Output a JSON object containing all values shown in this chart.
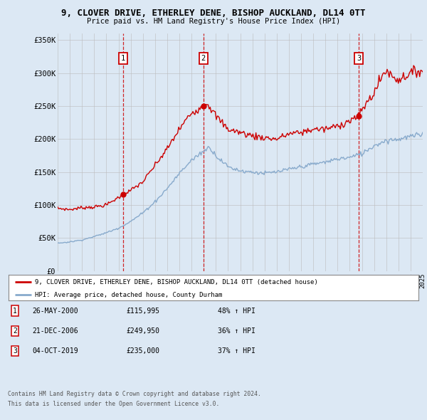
{
  "title": "9, CLOVER DRIVE, ETHERLEY DENE, BISHOP AUCKLAND, DL14 0TT",
  "subtitle": "Price paid vs. HM Land Registry's House Price Index (HPI)",
  "bg_color": "#dce8f4",
  "plot_bg_color": "#dce8f4",
  "legend_line1": "9, CLOVER DRIVE, ETHERLEY DENE, BISHOP AUCKLAND, DL14 0TT (detached house)",
  "legend_line2": "HPI: Average price, detached house, County Durham",
  "footer1": "Contains HM Land Registry data © Crown copyright and database right 2024.",
  "footer2": "This data is licensed under the Open Government Licence v3.0.",
  "sales": [
    {
      "num": 1,
      "date": "26-MAY-2000",
      "price": 115995,
      "pct": "48% ↑ HPI"
    },
    {
      "num": 2,
      "date": "21-DEC-2006",
      "price": 249950,
      "pct": "36% ↑ HPI"
    },
    {
      "num": 3,
      "date": "04-OCT-2019",
      "price": 235000,
      "pct": "37% ↑ HPI"
    }
  ],
  "sale_years": [
    2000.38,
    2006.97,
    2019.76
  ],
  "sale_prices": [
    115995,
    249950,
    235000
  ],
  "ylim": [
    0,
    360000
  ],
  "yticks": [
    0,
    50000,
    100000,
    150000,
    200000,
    250000,
    300000,
    350000
  ],
  "ytick_labels": [
    "£0",
    "£50K",
    "£100K",
    "£150K",
    "£200K",
    "£250K",
    "£300K",
    "£350K"
  ],
  "year_start": 1995,
  "year_end": 2025,
  "red_color": "#cc0000",
  "blue_color": "#88aacc",
  "grid_color": "#bbbbbb",
  "red_kp_years": [
    1995,
    1996,
    1997,
    1998,
    1999,
    2000.38,
    2001,
    2002,
    2003,
    2004,
    2005,
    2006,
    2006.97,
    2007.3,
    2008,
    2009,
    2010,
    2011,
    2012,
    2013,
    2014,
    2015,
    2016,
    2017,
    2018,
    2019,
    2019.76,
    2020,
    2021,
    2021.5,
    2022,
    2022.5,
    2023,
    2024,
    2025
  ],
  "red_kp_vals": [
    95000,
    93000,
    96000,
    97000,
    100000,
    115995,
    122000,
    135000,
    160000,
    185000,
    215000,
    240000,
    249950,
    255000,
    235000,
    215000,
    210000,
    205000,
    202000,
    200000,
    208000,
    210000,
    215000,
    215000,
    220000,
    228000,
    235000,
    245000,
    270000,
    290000,
    305000,
    295000,
    290000,
    300000,
    305000
  ],
  "blue_kp_years": [
    1995,
    1996,
    1997,
    1998,
    1999,
    2000,
    2001,
    2002,
    2003,
    2004,
    2005,
    2006,
    2007,
    2007.5,
    2008,
    2009,
    2010,
    2011,
    2012,
    2013,
    2014,
    2015,
    2016,
    2017,
    2018,
    2019,
    2020,
    2021,
    2022,
    2023,
    2024,
    2025
  ],
  "blue_kp_vals": [
    42000,
    44000,
    47000,
    52000,
    58000,
    65000,
    75000,
    88000,
    105000,
    125000,
    148000,
    168000,
    182000,
    188000,
    175000,
    158000,
    152000,
    150000,
    148000,
    150000,
    154000,
    158000,
    162000,
    165000,
    170000,
    172000,
    178000,
    190000,
    198000,
    200000,
    204000,
    207000
  ]
}
